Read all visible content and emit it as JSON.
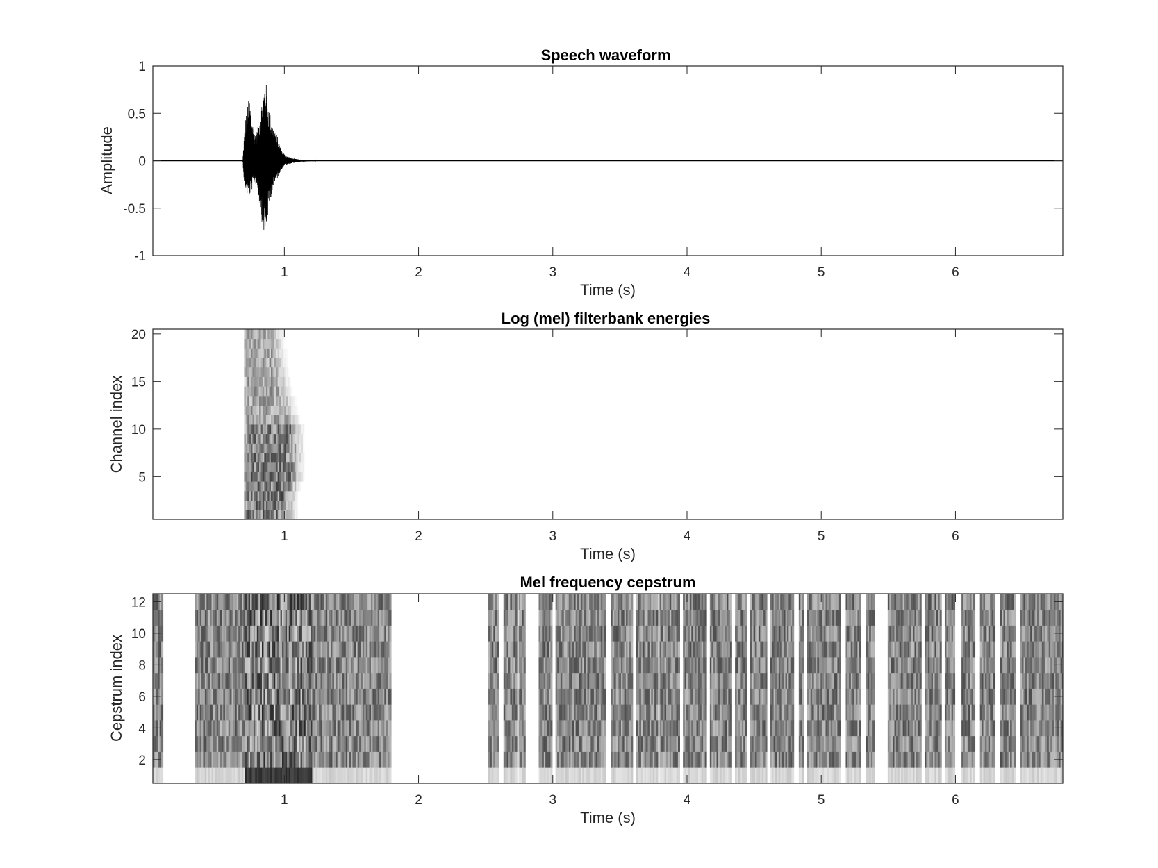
{
  "chart_data": [
    {
      "type": "line",
      "title": "Speech waveform",
      "xlabel": "Time (s)",
      "ylabel": "Amplitude",
      "xlim": [
        0.02,
        6.8
      ],
      "ylim": [
        -1,
        1
      ],
      "xticks": [
        1,
        2,
        3,
        4,
        5,
        6
      ],
      "yticks": [
        -1,
        -0.5,
        0,
        0.5,
        1
      ],
      "ytick_labels": [
        "-1",
        "-0.5",
        "0",
        "0.5",
        "1"
      ],
      "grid": false,
      "series": [
        {
          "color": "#000000",
          "envelope": {
            "x": [
              0.02,
              0.69,
              0.7,
              0.72,
              0.74,
              0.76,
              0.78,
              0.8,
              0.82,
              0.84,
              0.86,
              0.88,
              0.9,
              0.92,
              0.94,
              0.96,
              0.98,
              1.0,
              1.05,
              1.1,
              1.2,
              1.5,
              6.8
            ],
            "upper": [
              0.0,
              0.0,
              0.25,
              0.6,
              0.66,
              0.45,
              0.3,
              0.33,
              0.52,
              0.7,
              0.88,
              0.62,
              0.45,
              0.35,
              0.3,
              0.2,
              0.12,
              0.07,
              0.03,
              0.015,
              0.005,
              0.002,
              0.002
            ],
            "lower": [
              0.0,
              0.0,
              -0.22,
              -0.36,
              -0.38,
              -0.3,
              -0.22,
              -0.3,
              -0.5,
              -0.72,
              -0.82,
              -0.55,
              -0.38,
              -0.28,
              -0.22,
              -0.15,
              -0.09,
              -0.05,
              -0.03,
              -0.015,
              -0.005,
              -0.002,
              -0.002
            ]
          }
        }
      ]
    },
    {
      "type": "heatmap",
      "title": "Log (mel) filterbank energies",
      "xlabel": "Time (s)",
      "ylabel": "Channel index",
      "xlim": [
        0.02,
        6.8
      ],
      "ylim": [
        0.5,
        20.5
      ],
      "xticks": [
        1,
        2,
        3,
        4,
        5,
        6
      ],
      "yticks": [
        5,
        10,
        15,
        20
      ],
      "colormap": "gray-inverted",
      "rows": 20,
      "frame_step_s": 0.025,
      "active_region": {
        "start_s": 0.7,
        "end_by_channel_s": [
          1.1,
          1.1,
          1.1,
          1.12,
          1.15,
          1.15,
          1.15,
          1.15,
          1.15,
          1.15,
          1.12,
          1.1,
          1.08,
          1.06,
          1.05,
          1.03,
          1.02,
          1.02,
          1.0,
          1.0
        ]
      }
    },
    {
      "type": "heatmap",
      "title": "Mel frequency cepstrum",
      "xlabel": "Time (s)",
      "ylabel": "Cepstrum index",
      "xlim": [
        0.02,
        6.8
      ],
      "ylim": [
        0.5,
        12.5
      ],
      "xticks": [
        1,
        2,
        3,
        4,
        5,
        6
      ],
      "yticks": [
        2,
        4,
        6,
        8,
        10,
        12
      ],
      "colormap": "gray",
      "rows": 12,
      "frame_step_s": 0.025,
      "white_gaps_s": [
        [
          0.09,
          0.33
        ],
        [
          1.8,
          2.52
        ],
        [
          2.6,
          2.63
        ],
        [
          2.73,
          2.75
        ],
        [
          2.8,
          2.9
        ],
        [
          3.0,
          3.02
        ],
        [
          3.4,
          3.43
        ],
        [
          3.6,
          3.62
        ],
        [
          3.78,
          3.8
        ],
        [
          3.95,
          3.97
        ],
        [
          4.15,
          4.17
        ],
        [
          4.33,
          4.36
        ],
        [
          4.45,
          4.47
        ],
        [
          4.6,
          4.62
        ],
        [
          4.69,
          4.7
        ],
        [
          4.8,
          4.83
        ],
        [
          4.87,
          4.9
        ],
        [
          5.15,
          5.18
        ],
        [
          5.3,
          5.33
        ],
        [
          5.4,
          5.5
        ],
        [
          5.75,
          5.77
        ],
        [
          5.9,
          5.92
        ],
        [
          6.0,
          6.05
        ],
        [
          6.15,
          6.18
        ],
        [
          6.3,
          6.33
        ],
        [
          6.45,
          6.48
        ]
      ]
    }
  ]
}
